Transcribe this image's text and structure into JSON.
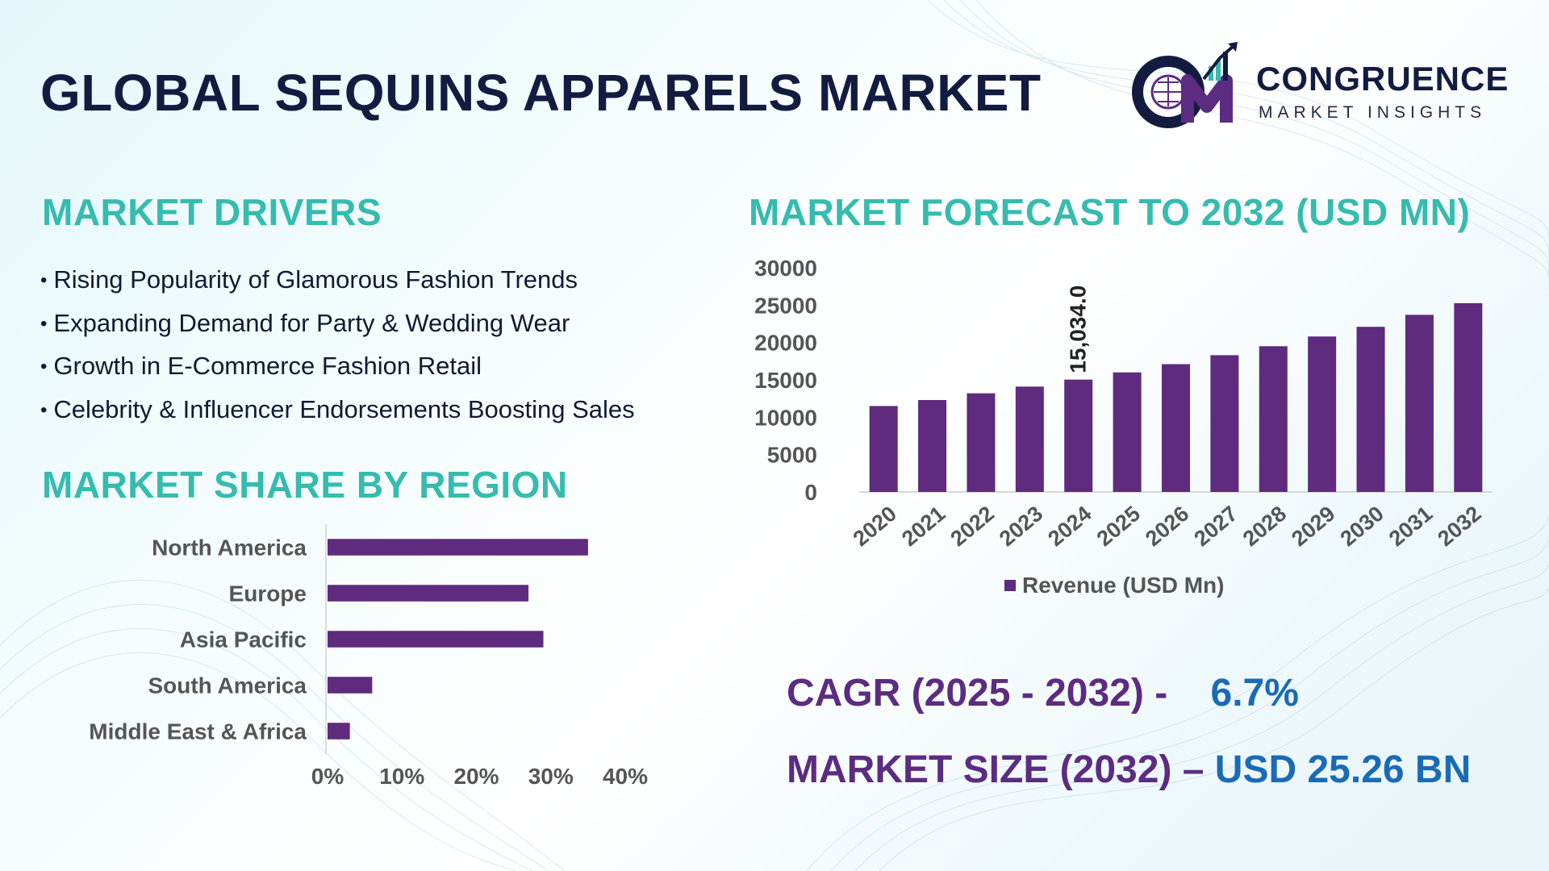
{
  "title": "GLOBAL SEQUINS APPARELS MARKET",
  "logo": {
    "name": "CONGRUENCE",
    "tagline": "MARKET INSIGHTS"
  },
  "drivers": {
    "heading": "MARKET DRIVERS",
    "items": [
      "Rising Popularity of Glamorous Fashion Trends",
      "Expanding Demand for Party & Wedding Wear",
      "Growth in E-Commerce Fashion Retail",
      "Celebrity & Influencer Endorsements Boosting Sales"
    ]
  },
  "forecast": {
    "heading": "MARKET FORECAST TO 2032 (USD MN)"
  },
  "region": {
    "heading": "MARKET SHARE BY REGION"
  },
  "stats": {
    "cagr_label": "CAGR (2025 - 2032) -",
    "cagr_value": "6.7%",
    "size_label": "MARKET SIZE (2032) –",
    "size_value": "USD 25.26 BN"
  },
  "colors": {
    "bar": "#5e2b7e",
    "heading": "#35bcae",
    "title": "#131c40",
    "stat_label": "#5b2c81",
    "stat_value": "#1a6bb5",
    "axis_text": "#555555"
  },
  "chart_data": [
    {
      "type": "bar",
      "categories": [
        "2020",
        "2021",
        "2022",
        "2023",
        "2024",
        "2025",
        "2026",
        "2027",
        "2028",
        "2029",
        "2030",
        "2031",
        "2032"
      ],
      "series": [
        {
          "name": "Revenue (USD Mn)",
          "values": [
            11500,
            12300,
            13200,
            14100,
            15034,
            16000,
            17100,
            18300,
            19500,
            20800,
            22100,
            23700,
            25260
          ]
        }
      ],
      "data_labels": [
        {
          "category": "2024",
          "text": "15,034.0"
        }
      ],
      "yticks": [
        "0",
        "5000",
        "10000",
        "15000",
        "20000",
        "25000",
        "30000"
      ],
      "ylim": [
        0,
        30000
      ],
      "legend": "bottom",
      "grid": false
    },
    {
      "type": "bar",
      "orientation": "horizontal",
      "categories": [
        "North America",
        "Europe",
        "Asia Pacific",
        "South America",
        "Middle East & Africa"
      ],
      "values": [
        35,
        27,
        29,
        6,
        3
      ],
      "xticks": [
        "0%",
        "10%",
        "20%",
        "30%",
        "40%"
      ],
      "xlim": [
        0,
        40
      ],
      "grid": false
    }
  ]
}
